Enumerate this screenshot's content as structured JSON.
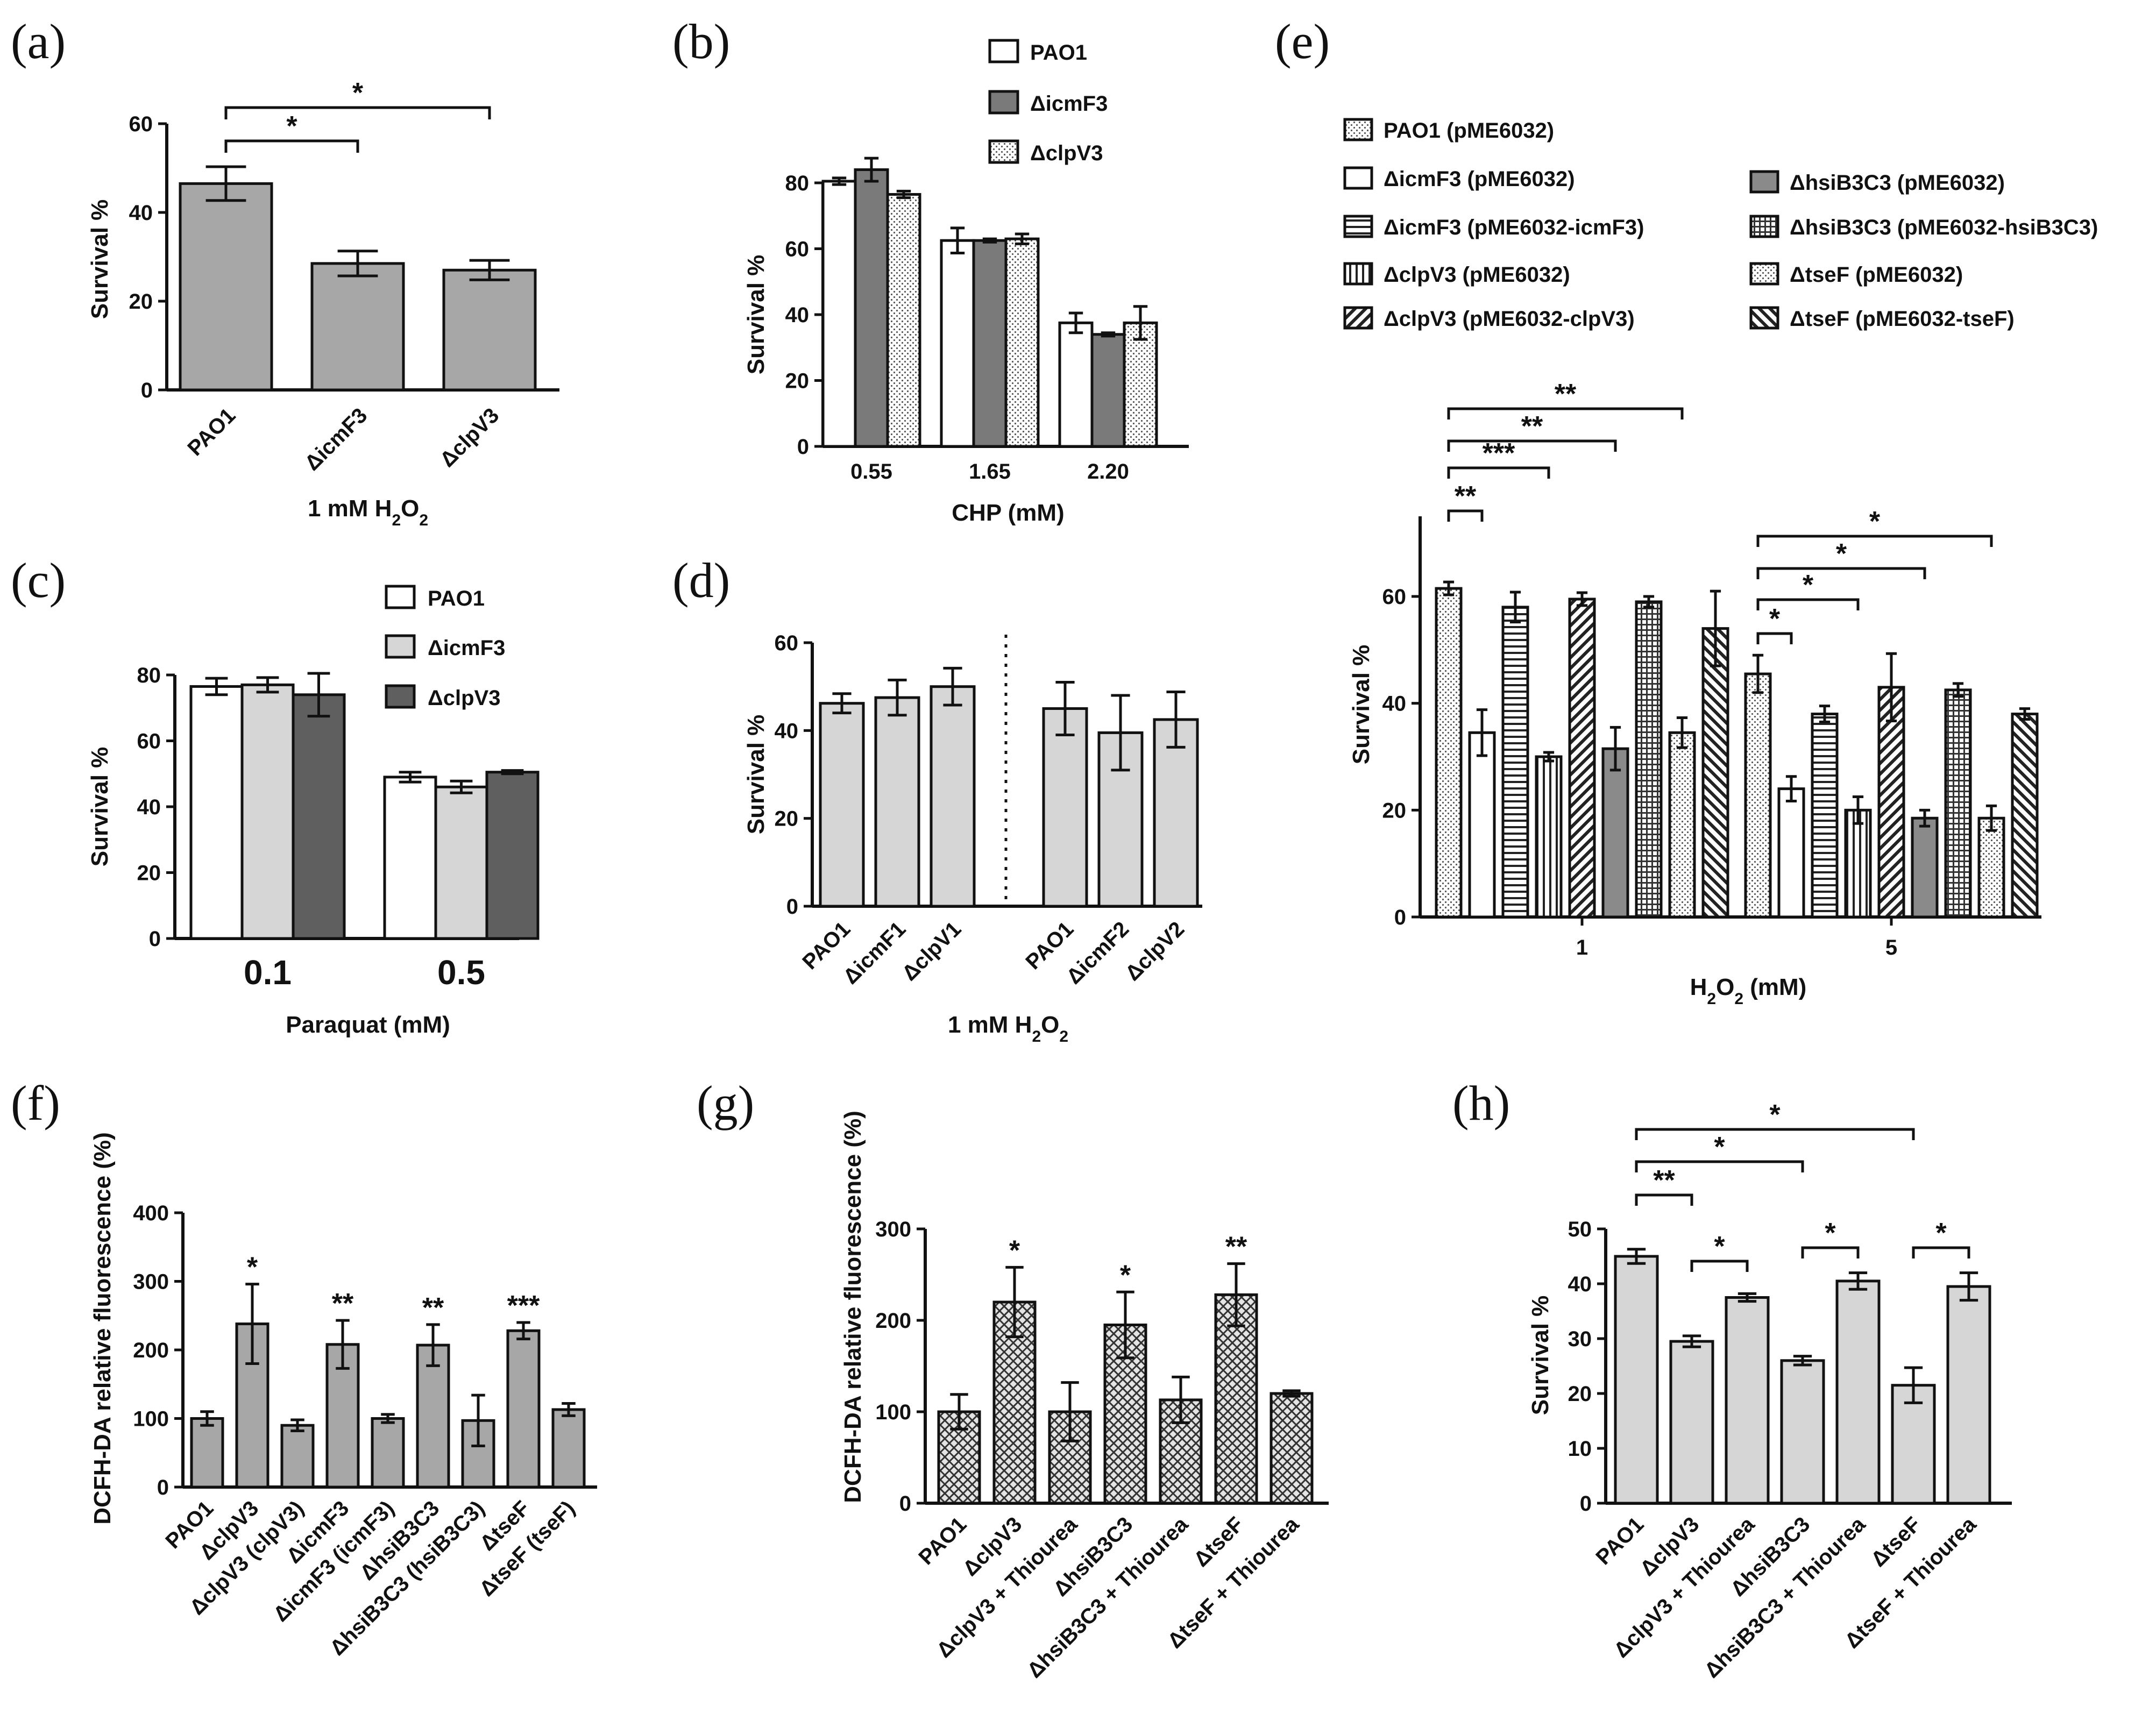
{
  "colors": {
    "gray": "#a7a7a7",
    "lightgray": "#d6d6d6",
    "darkgray": "#5f5f5f",
    "white": "#ffffff",
    "ink": "#111111"
  },
  "panels": [
    "(a)",
    "(b)",
    "(c)",
    "(d)",
    "(e)",
    "(f)",
    "(g)",
    "(h)"
  ],
  "chart_data": [
    {
      "id": "a",
      "type": "bar",
      "categories": [
        "PAO1",
        "ΔicmF3",
        "ΔclpV3"
      ],
      "values": [
        46.5,
        28.5,
        27
      ],
      "errors": [
        3.8,
        2.8,
        2.2
      ],
      "xlabel": "1 mM H2O2",
      "ylabel": "Survival %",
      "ylim": [
        0,
        60
      ],
      "yticks": [
        0,
        20,
        40,
        60
      ],
      "significance": [
        {
          "from": 0,
          "to": 1,
          "label": "*"
        },
        {
          "from": 0,
          "to": 2,
          "label": "*"
        }
      ]
    },
    {
      "id": "b",
      "type": "bar",
      "categories": [
        "0.55",
        "1.65",
        "2.20"
      ],
      "series": [
        {
          "name": "PAO1",
          "values": [
            80.5,
            62.5,
            37.5
          ],
          "errors": [
            1,
            3.8,
            3
          ]
        },
        {
          "name": "ΔicmF3",
          "values": [
            84,
            62.5,
            34
          ],
          "errors": [
            3.5,
            0.5,
            0.5
          ]
        },
        {
          "name": "ΔclpV3",
          "values": [
            76.5,
            63,
            37.5
          ],
          "errors": [
            1,
            1.5,
            5
          ]
        }
      ],
      "xlabel": "CHP (mM)",
      "ylabel": "Survival %",
      "ylim": [
        0,
        80
      ],
      "yticks": [
        0,
        20,
        40,
        60,
        80
      ]
    },
    {
      "id": "c",
      "type": "bar",
      "categories": [
        "0.1",
        "0.5"
      ],
      "series": [
        {
          "name": "PAO1",
          "values": [
            76.5,
            49
          ],
          "errors": [
            2.5,
            1.5
          ]
        },
        {
          "name": "ΔicmF3",
          "values": [
            77,
            46
          ],
          "errors": [
            2.2,
            1.8
          ]
        },
        {
          "name": "ΔclpV3",
          "values": [
            74,
            50.5
          ],
          "errors": [
            6.5,
            0.5
          ]
        }
      ],
      "xlabel": "Paraquat (mM)",
      "ylabel": "Survival %",
      "ylim": [
        0,
        80
      ],
      "yticks": [
        0,
        20,
        40,
        60,
        80
      ]
    },
    {
      "id": "d",
      "type": "bar",
      "categories": [
        "PAO1",
        "ΔicmF1",
        "ΔclpV1",
        "PAO1",
        "ΔicmF2",
        "ΔclpV2"
      ],
      "values": [
        46.2,
        47.5,
        50,
        45,
        39.5,
        42.5
      ],
      "errors": [
        2.2,
        4,
        4.2,
        6,
        8.5,
        6.3
      ],
      "xlabel": "1 mM H2O2",
      "ylabel": "Survival %",
      "ylim": [
        0,
        60
      ],
      "yticks": [
        0,
        20,
        40,
        60
      ]
    },
    {
      "id": "e",
      "type": "bar",
      "categories": [
        "1",
        "5"
      ],
      "series": [
        {
          "name": "PAO1 (pME6032)",
          "values": [
            61.5,
            45.5
          ],
          "errors": [
            1.2,
            3.5
          ]
        },
        {
          "name": "ΔicmF3 (pME6032)",
          "values": [
            34.5,
            24
          ],
          "errors": [
            4.3,
            2.3
          ]
        },
        {
          "name": "ΔicmF3 (pME6032-icmF3)",
          "values": [
            58,
            38
          ],
          "errors": [
            2.8,
            1.5
          ]
        },
        {
          "name": "ΔclpV3 (pME6032)",
          "values": [
            30,
            20
          ],
          "errors": [
            0.8,
            2.5
          ]
        },
        {
          "name": "ΔclpV3 (pME6032-clpV3)",
          "values": [
            59.5,
            43
          ],
          "errors": [
            1.2,
            6.3
          ]
        },
        {
          "name": "ΔhsiB3C3 (pME6032)",
          "values": [
            31.5,
            18.5
          ],
          "errors": [
            4,
            1.5
          ]
        },
        {
          "name": "ΔhsiB3C3 (pME6032-hsiB3C3)",
          "values": [
            59,
            42.5
          ],
          "errors": [
            1,
            1.2
          ]
        },
        {
          "name": "ΔtseF (pME6032)",
          "values": [
            34.5,
            18.5
          ],
          "errors": [
            2.8,
            2.3
          ]
        },
        {
          "name": "ΔtseF (pME6032-tseF)",
          "values": [
            54,
            38
          ],
          "errors": [
            7,
            1
          ]
        }
      ],
      "xlabel": "H2O2 (mM)",
      "ylabel": "Survival %",
      "ylim": [
        0,
        75
      ],
      "yticks": [
        0,
        20,
        40,
        60
      ],
      "significance": [
        {
          "group": 0,
          "from": 0,
          "to": 1,
          "label": "**"
        },
        {
          "group": 0,
          "from": 0,
          "to": 3,
          "label": "***"
        },
        {
          "group": 0,
          "from": 0,
          "to": 5,
          "label": "**"
        },
        {
          "group": 0,
          "from": 0,
          "to": 7,
          "label": "**"
        },
        {
          "group": 1,
          "from": 0,
          "to": 1,
          "label": "*"
        },
        {
          "group": 1,
          "from": 0,
          "to": 3,
          "label": "*"
        },
        {
          "group": 1,
          "from": 0,
          "to": 5,
          "label": "*"
        },
        {
          "group": 1,
          "from": 0,
          "to": 7,
          "label": "*"
        }
      ]
    },
    {
      "id": "f",
      "type": "bar",
      "categories": [
        "PAO1",
        "ΔclpV3",
        "ΔclpV3 (clpV3)",
        "ΔicmF3",
        "ΔicmF3 (icmF3)",
        "ΔhsiB3C3",
        "ΔhsiB3C3 (hsiB3C3)",
        "ΔtseF",
        "ΔtseF (tseF)"
      ],
      "values": [
        100,
        238,
        90,
        208,
        100,
        207,
        97,
        228,
        113
      ],
      "errors": [
        10,
        58,
        8,
        35,
        6,
        30,
        37,
        12,
        9
      ],
      "stars": [
        "",
        "*",
        "",
        "**",
        "",
        "**",
        "",
        "***",
        ""
      ],
      "ylabel": "DCFH-DA relative fluorescence (%)",
      "ylim": [
        0,
        400
      ],
      "yticks": [
        0,
        100,
        200,
        300,
        400
      ]
    },
    {
      "id": "g",
      "type": "bar",
      "categories": [
        "PAO1",
        "ΔclpV3",
        "ΔclpV3 + Thiourea",
        "ΔhsiB3C3",
        "ΔhsiB3C3 + Thiourea",
        "ΔtseF",
        "ΔtseF + Thiourea"
      ],
      "values": [
        100,
        220,
        100,
        195,
        113,
        228,
        120
      ],
      "errors": [
        19,
        38,
        32,
        36,
        25,
        34,
        3
      ],
      "stars": [
        "",
        "*",
        "",
        "*",
        "",
        "**",
        ""
      ],
      "ylabel": "DCFH-DA relative fluorescence (%)",
      "ylim": [
        0,
        300
      ],
      "yticks": [
        0,
        100,
        200,
        300
      ]
    },
    {
      "id": "h",
      "type": "bar",
      "categories": [
        "PAO1",
        "ΔclpV3",
        "ΔclpV3 + Thiourea",
        "ΔhsiB3C3",
        "ΔhsiB3C3 + Thiourea",
        "ΔtseF",
        "ΔtseF + Thiourea"
      ],
      "values": [
        45,
        29.5,
        37.5,
        26,
        40.5,
        21.5,
        39.5
      ],
      "errors": [
        1.3,
        1,
        0.7,
        0.8,
        1.5,
        3.2,
        2.5
      ],
      "ylabel": "Survival %",
      "ylim": [
        0,
        50
      ],
      "yticks": [
        0,
        10,
        20,
        30,
        40,
        50
      ],
      "significance": [
        {
          "from": 0,
          "to": 1,
          "label": "**"
        },
        {
          "from": 0,
          "to": 3,
          "label": "*"
        },
        {
          "from": 0,
          "to": 5,
          "label": "*"
        },
        {
          "from": 1,
          "to": 2,
          "label": "*"
        },
        {
          "from": 3,
          "to": 4,
          "label": "*"
        },
        {
          "from": 5,
          "to": 6,
          "label": "*"
        }
      ]
    }
  ]
}
